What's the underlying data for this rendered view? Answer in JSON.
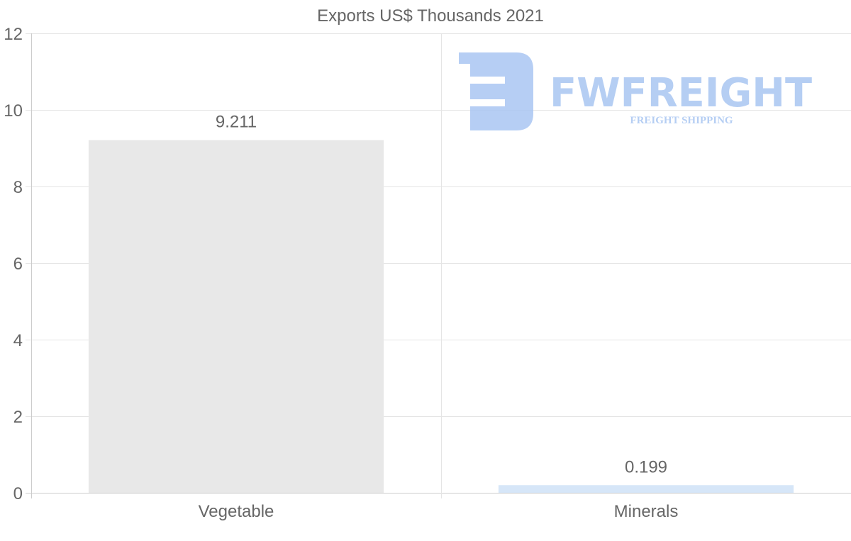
{
  "chart_data": {
    "type": "bar",
    "title": "Exports US$ Thousands 2021",
    "categories": [
      "Vegetable",
      "Minerals"
    ],
    "values": [
      9.211,
      0.199
    ],
    "data_labels": [
      "9.211",
      "0.199"
    ],
    "bar_colors": [
      "#e8e8e8",
      "#d6e6f8"
    ],
    "ylim": [
      0,
      12
    ],
    "yticks": [
      0,
      2,
      4,
      6,
      8,
      10,
      12
    ],
    "xlabel": "",
    "ylabel": "",
    "grid": true
  },
  "watermark": {
    "brand": "FWFREIGHT",
    "tagline": "FREIGHT SHIPPING",
    "color": "#a9c6f2"
  }
}
